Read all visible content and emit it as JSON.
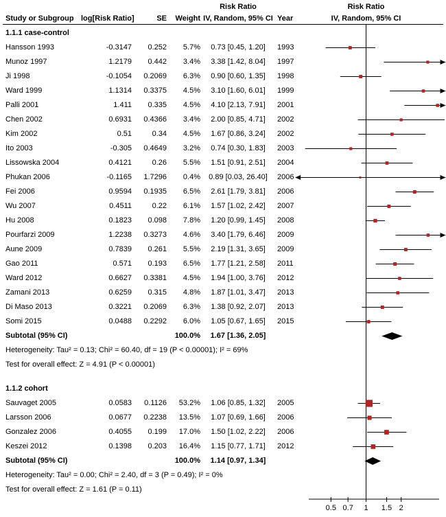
{
  "header": {
    "risk_ratio_stats": "Risk Ratio",
    "risk_ratio_plot": "Risk Ratio",
    "columns": [
      "Study or Subgroup",
      "log[Risk Ratio]",
      "SE",
      "Weight",
      "IV, Random, 95% CI",
      "Year"
    ],
    "plot_subheader": "IV, Random, 95% CI"
  },
  "chart_data": {
    "type": "forest",
    "effect_measure": "Risk Ratio",
    "model": "IV, Random, 95% CI",
    "x_scale": "log",
    "x_ticks": [
      "0.5",
      "0.7",
      "1",
      "1.5",
      "2"
    ],
    "marker_color": "#b32424",
    "diamond_color": "#000000",
    "line_color": "#000000",
    "groups": [
      {
        "label": "1.1.1 case-control",
        "studies": [
          {
            "name": "Hansson 1993",
            "log_rr": "-0.3147",
            "se": "0.252",
            "weight": "5.7%",
            "ci_text": "0.73 [0.45, 1.20]",
            "year": "1993",
            "rr": 0.73,
            "lo": 0.45,
            "hi": 1.2
          },
          {
            "name": "Munoz 1997",
            "log_rr": "1.2179",
            "se": "0.442",
            "weight": "3.4%",
            "ci_text": "3.38 [1.42, 8.04]",
            "year": "1997",
            "rr": 3.38,
            "lo": 1.42,
            "hi": 8.04
          },
          {
            "name": "Ji 1998",
            "log_rr": "-0.1054",
            "se": "0.2069",
            "weight": "6.3%",
            "ci_text": "0.90 [0.60, 1.35]",
            "year": "1998",
            "rr": 0.9,
            "lo": 0.6,
            "hi": 1.35
          },
          {
            "name": "Ward 1999",
            "log_rr": "1.1314",
            "se": "0.3375",
            "weight": "4.5%",
            "ci_text": "3.10 [1.60, 6.01]",
            "year": "1999",
            "rr": 3.1,
            "lo": 1.6,
            "hi": 6.01
          },
          {
            "name": "Palli 2001",
            "log_rr": "1.411",
            "se": "0.335",
            "weight": "4.5%",
            "ci_text": "4.10 [2.13, 7.91]",
            "year": "2001",
            "rr": 4.1,
            "lo": 2.13,
            "hi": 7.91
          },
          {
            "name": "Chen 2002",
            "log_rr": "0.6931",
            "se": "0.4366",
            "weight": "3.4%",
            "ci_text": "2.00 [0.85, 4.71]",
            "year": "2002",
            "rr": 2.0,
            "lo": 0.85,
            "hi": 4.71
          },
          {
            "name": "Kim 2002",
            "log_rr": "0.51",
            "se": "0.34",
            "weight": "4.5%",
            "ci_text": "1.67 [0.86, 3.24]",
            "year": "2002",
            "rr": 1.67,
            "lo": 0.86,
            "hi": 3.24
          },
          {
            "name": "Ito 2003",
            "log_rr": "-0.305",
            "se": "0.4649",
            "weight": "3.2%",
            "ci_text": "0.74 [0.30, 1.83]",
            "year": "2003",
            "rr": 0.74,
            "lo": 0.3,
            "hi": 1.83
          },
          {
            "name": "Lissowska 2004",
            "log_rr": "0.4121",
            "se": "0.26",
            "weight": "5.5%",
            "ci_text": "1.51 [0.91, 2.51]",
            "year": "2004",
            "rr": 1.51,
            "lo": 0.91,
            "hi": 2.51
          },
          {
            "name": "Phukan 2006",
            "log_rr": "-0.1165",
            "se": "1.7296",
            "weight": "0.4%",
            "ci_text": "0.89 [0.03, 26.40]",
            "year": "2006",
            "rr": 0.89,
            "lo": 0.03,
            "hi": 26.4
          },
          {
            "name": "Fei 2006",
            "log_rr": "0.9594",
            "se": "0.1935",
            "weight": "6.5%",
            "ci_text": "2.61 [1.79, 3.81]",
            "year": "2006",
            "rr": 2.61,
            "lo": 1.79,
            "hi": 3.81
          },
          {
            "name": "Wu 2007",
            "log_rr": "0.4511",
            "se": "0.22",
            "weight": "6.1%",
            "ci_text": "1.57 [1.02, 2.42]",
            "year": "2007",
            "rr": 1.57,
            "lo": 1.02,
            "hi": 2.42
          },
          {
            "name": "Hu 2008",
            "log_rr": "0.1823",
            "se": "0.098",
            "weight": "7.8%",
            "ci_text": "1.20 [0.99, 1.45]",
            "year": "2008",
            "rr": 1.2,
            "lo": 0.99,
            "hi": 1.45
          },
          {
            "name": "Pourfarzi 2009",
            "log_rr": "1.2238",
            "se": "0.3273",
            "weight": "4.6%",
            "ci_text": "3.40 [1.79, 6.46]",
            "year": "2009",
            "rr": 3.4,
            "lo": 1.79,
            "hi": 6.46
          },
          {
            "name": "Aune 2009",
            "log_rr": "0.7839",
            "se": "0.261",
            "weight": "5.5%",
            "ci_text": "2.19 [1.31, 3.65]",
            "year": "2009",
            "rr": 2.19,
            "lo": 1.31,
            "hi": 3.65
          },
          {
            "name": "Gao 2011",
            "log_rr": "0.571",
            "se": "0.193",
            "weight": "6.5%",
            "ci_text": "1.77 [1.21, 2.58]",
            "year": "2011",
            "rr": 1.77,
            "lo": 1.21,
            "hi": 2.58
          },
          {
            "name": "Ward 2012",
            "log_rr": "0.6627",
            "se": "0.3381",
            "weight": "4.5%",
            "ci_text": "1.94 [1.00, 3.76]",
            "year": "2012",
            "rr": 1.94,
            "lo": 1.0,
            "hi": 3.76
          },
          {
            "name": "Zamani 2013",
            "log_rr": "0.6259",
            "se": "0.315",
            "weight": "4.8%",
            "ci_text": "1.87 [1.01, 3.47]",
            "year": "2013",
            "rr": 1.87,
            "lo": 1.01,
            "hi": 3.47
          },
          {
            "name": "Di Maso 2013",
            "log_rr": "0.3221",
            "se": "0.2069",
            "weight": "6.3%",
            "ci_text": "1.38 [0.92, 2.07]",
            "year": "2013",
            "rr": 1.38,
            "lo": 0.92,
            "hi": 2.07
          },
          {
            "name": "Somi 2015",
            "log_rr": "0.0488",
            "se": "0.2292",
            "weight": "6.0%",
            "ci_text": "1.05 [0.67, 1.65]",
            "year": "2015",
            "rr": 1.05,
            "lo": 0.67,
            "hi": 1.65
          }
        ],
        "subtotal": {
          "label": "Subtotal (95% CI)",
          "weight": "100.0%",
          "ci_text": "1.67 [1.36, 2.05]",
          "rr": 1.67,
          "lo": 1.36,
          "hi": 2.05
        },
        "heterogeneity": "Heterogeneity: Tau² = 0.13; Chi² = 60.40, df = 19 (P < 0.00001); I² = 69%",
        "overall": "Test for overall effect: Z = 4.91 (P < 0.00001)"
      },
      {
        "label": "1.1.2 cohort",
        "studies": [
          {
            "name": "Sauvaget 2005",
            "log_rr": "0.0583",
            "se": "0.1126",
            "weight": "53.2%",
            "ci_text": "1.06 [0.85, 1.32]",
            "year": "2005",
            "rr": 1.06,
            "lo": 0.85,
            "hi": 1.32
          },
          {
            "name": "Larsson 2006",
            "log_rr": "0.0677",
            "se": "0.2238",
            "weight": "13.5%",
            "ci_text": "1.07 [0.69, 1.66]",
            "year": "2006",
            "rr": 1.07,
            "lo": 0.69,
            "hi": 1.66
          },
          {
            "name": "Gonzalez 2006",
            "log_rr": "0.4055",
            "se": "0.199",
            "weight": "17.0%",
            "ci_text": "1.50 [1.02, 2.22]",
            "year": "2006",
            "rr": 1.5,
            "lo": 1.02,
            "hi": 2.22
          },
          {
            "name": "Keszei 2012",
            "log_rr": "0.1398",
            "se": "0.203",
            "weight": "16.4%",
            "ci_text": "1.15 [0.77, 1.71]",
            "year": "2012",
            "rr": 1.15,
            "lo": 0.77,
            "hi": 1.71
          }
        ],
        "subtotal": {
          "label": "Subtotal (95% CI)",
          "weight": "100.0%",
          "ci_text": "1.14 [0.97, 1.34]",
          "rr": 1.14,
          "lo": 0.97,
          "hi": 1.34
        },
        "heterogeneity": "Heterogeneity: Tau² = 0.00; Chi² = 2.40, df = 3 (P = 0.49); I² = 0%",
        "overall": "Test for overall effect: Z = 1.61 (P = 0.11)"
      }
    ]
  }
}
